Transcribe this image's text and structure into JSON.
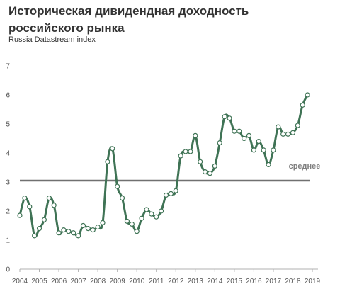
{
  "chart_data": {
    "type": "line",
    "title": "Историческая дивидендная доходность российского рынка",
    "subtitle": "Russia Datastream index",
    "ylim": [
      0,
      7
    ],
    "yticks": [
      0,
      1,
      2,
      3,
      4,
      5,
      6,
      7
    ],
    "xlim": [
      2004,
      2019
    ],
    "xticks": [
      "2004",
      "2005",
      "2006",
      "2007",
      "2008",
      "2009",
      "2010",
      "2011",
      "2012",
      "2013",
      "2014",
      "2015",
      "2016",
      "2017",
      "2018",
      "2019"
    ],
    "average": {
      "label": "среднее",
      "value": 3.05
    },
    "colors": {
      "line": "#3f7355",
      "average": "#707070",
      "marker_fill": "#ffffff"
    },
    "series": [
      {
        "points": [
          [
            2004.0,
            1.85
          ],
          [
            2004.25,
            2.45
          ],
          [
            2004.5,
            2.15
          ],
          [
            2004.75,
            1.15
          ],
          [
            2005.0,
            1.4
          ],
          [
            2005.25,
            1.7
          ],
          [
            2005.5,
            2.45
          ],
          [
            2005.75,
            2.2
          ],
          [
            2006.0,
            1.25
          ],
          [
            2006.25,
            1.35
          ],
          [
            2006.5,
            1.3
          ],
          [
            2006.75,
            1.25
          ],
          [
            2007.0,
            1.15
          ],
          [
            2007.25,
            1.5
          ],
          [
            2007.5,
            1.4
          ],
          [
            2007.75,
            1.35
          ],
          [
            2008.0,
            1.45
          ],
          [
            2008.25,
            1.6
          ],
          [
            2008.5,
            3.7
          ],
          [
            2008.75,
            4.15
          ],
          [
            2009.0,
            2.85
          ],
          [
            2009.25,
            2.45
          ],
          [
            2009.5,
            1.65
          ],
          [
            2009.75,
            1.55
          ],
          [
            2010.0,
            1.3
          ],
          [
            2010.25,
            1.75
          ],
          [
            2010.5,
            2.05
          ],
          [
            2010.75,
            1.9
          ],
          [
            2011.0,
            1.8
          ],
          [
            2011.25,
            2.0
          ],
          [
            2011.5,
            2.55
          ],
          [
            2011.75,
            2.6
          ],
          [
            2012.0,
            2.7
          ],
          [
            2012.25,
            3.9
          ],
          [
            2012.5,
            4.05
          ],
          [
            2012.75,
            4.05
          ],
          [
            2013.0,
            4.6
          ],
          [
            2013.25,
            3.7
          ],
          [
            2013.5,
            3.35
          ],
          [
            2013.75,
            3.3
          ],
          [
            2014.0,
            3.55
          ],
          [
            2014.25,
            4.35
          ],
          [
            2014.5,
            5.25
          ],
          [
            2014.75,
            5.2
          ],
          [
            2015.0,
            4.75
          ],
          [
            2015.25,
            4.75
          ],
          [
            2015.5,
            4.5
          ],
          [
            2015.75,
            4.6
          ],
          [
            2016.0,
            4.1
          ],
          [
            2016.25,
            4.4
          ],
          [
            2016.5,
            4.1
          ],
          [
            2016.75,
            3.6
          ],
          [
            2017.0,
            4.1
          ],
          [
            2017.25,
            4.9
          ],
          [
            2017.5,
            4.65
          ],
          [
            2017.75,
            4.65
          ],
          [
            2018.0,
            4.7
          ],
          [
            2018.25,
            4.95
          ],
          [
            2018.5,
            5.65
          ],
          [
            2018.75,
            6.0
          ]
        ]
      }
    ]
  }
}
